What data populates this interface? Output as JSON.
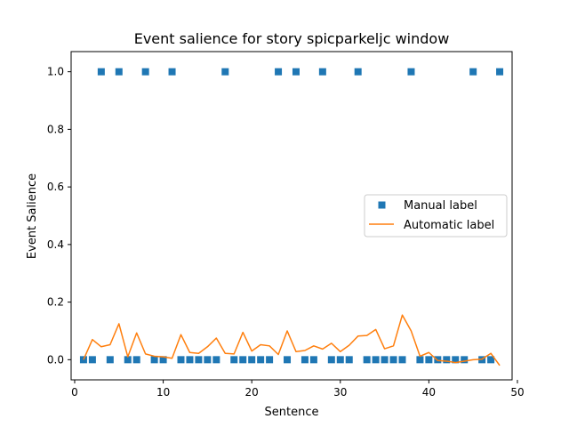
{
  "chart_data": {
    "type": "scatter+line",
    "title": "Event salience for story spicparkeljc window",
    "xlabel": "Sentence",
    "ylabel": "Event Salience",
    "xlim": [
      -0.4,
      49.4
    ],
    "ylim": [
      -0.07,
      1.07
    ],
    "xticks": [
      0,
      10,
      20,
      30,
      40,
      50
    ],
    "yticks": [
      0.0,
      0.2,
      0.4,
      0.6,
      0.8,
      1.0
    ],
    "xtick_labels": [
      "0",
      "10",
      "20",
      "30",
      "40",
      "50"
    ],
    "ytick_labels": [
      "0.0",
      "0.2",
      "0.4",
      "0.6",
      "0.8",
      "1.0"
    ],
    "grid": false,
    "legend_position": "center-right",
    "series": [
      {
        "name": "Manual label",
        "kind": "scatter",
        "marker": "square",
        "color": "#1f77b4",
        "points": [
          [
            1,
            0
          ],
          [
            2,
            0
          ],
          [
            3,
            1
          ],
          [
            4,
            0
          ],
          [
            5,
            1
          ],
          [
            6,
            0
          ],
          [
            7,
            0
          ],
          [
            8,
            1
          ],
          [
            9,
            0
          ],
          [
            10,
            0
          ],
          [
            11,
            1
          ],
          [
            12,
            0
          ],
          [
            13,
            0
          ],
          [
            14,
            0
          ],
          [
            15,
            0
          ],
          [
            16,
            0
          ],
          [
            17,
            1
          ],
          [
            18,
            0
          ],
          [
            19,
            0
          ],
          [
            20,
            0
          ],
          [
            21,
            0
          ],
          [
            22,
            0
          ],
          [
            23,
            1
          ],
          [
            24,
            0
          ],
          [
            25,
            1
          ],
          [
            26,
            0
          ],
          [
            27,
            0
          ],
          [
            28,
            1
          ],
          [
            29,
            0
          ],
          [
            30,
            0
          ],
          [
            31,
            0
          ],
          [
            32,
            1
          ],
          [
            33,
            0
          ],
          [
            34,
            0
          ],
          [
            35,
            0
          ],
          [
            36,
            0
          ],
          [
            37,
            0
          ],
          [
            38,
            1
          ],
          [
            39,
            0
          ],
          [
            40,
            0
          ],
          [
            41,
            0
          ],
          [
            42,
            0
          ],
          [
            43,
            0
          ],
          [
            44,
            0
          ],
          [
            45,
            1
          ],
          [
            46,
            0
          ],
          [
            47,
            0
          ],
          [
            48,
            1
          ]
        ]
      },
      {
        "name": "Automatic label",
        "kind": "line",
        "color": "#ff7f0e",
        "x": [
          1,
          2,
          3,
          4,
          5,
          6,
          7,
          8,
          9,
          10,
          11,
          12,
          13,
          14,
          15,
          16,
          17,
          18,
          19,
          20,
          21,
          22,
          23,
          24,
          25,
          26,
          27,
          28,
          29,
          30,
          31,
          32,
          33,
          34,
          35,
          36,
          37,
          38,
          39,
          40,
          41,
          42,
          43,
          44,
          45,
          46,
          47,
          48
        ],
        "y": [
          0.0,
          0.07,
          0.045,
          0.052,
          0.125,
          0.01,
          0.093,
          0.02,
          0.012,
          0.01,
          0.005,
          0.087,
          0.025,
          0.022,
          0.045,
          0.075,
          0.022,
          0.02,
          0.095,
          0.03,
          0.052,
          0.048,
          0.018,
          0.1,
          0.028,
          0.032,
          0.048,
          0.037,
          0.057,
          0.028,
          0.05,
          0.082,
          0.084,
          0.105,
          0.038,
          0.048,
          0.155,
          0.1,
          0.012,
          0.025,
          -0.003,
          -0.005,
          -0.01,
          -0.005,
          0.0,
          0.002,
          0.022,
          -0.02
        ]
      }
    ]
  }
}
